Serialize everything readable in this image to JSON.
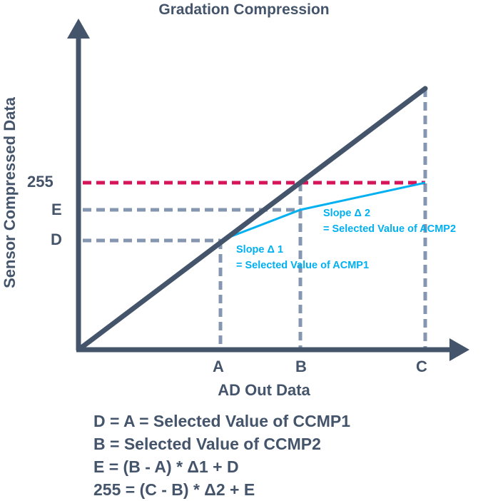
{
  "title": "Gradation Compression",
  "y_axis_label": "Sensor Compressed Data",
  "x_axis_label": "AD Out Data",
  "y_markers": {
    "top": "255",
    "mid": "E",
    "low": "D"
  },
  "x_markers": {
    "a": "A",
    "b": "B",
    "c": "C"
  },
  "slope1": {
    "line1": "Slope Δ 1",
    "line2": "= Selected Value of ACMP1"
  },
  "slope2": {
    "line1": "Slope Δ 2",
    "line2": "= Selected Value of ACMP2"
  },
  "formulas": [
    "D = A = Selected Value of CCMP1",
    "B = Selected Value of CCMP2",
    "E = (B - A) * Δ1 + D",
    "255 = (C - B) * Δ2 + E"
  ],
  "colors": {
    "axis": "#44546a",
    "guide": "#8496b0",
    "limit": "#d6145a",
    "compressed": "#00b0f0"
  }
}
